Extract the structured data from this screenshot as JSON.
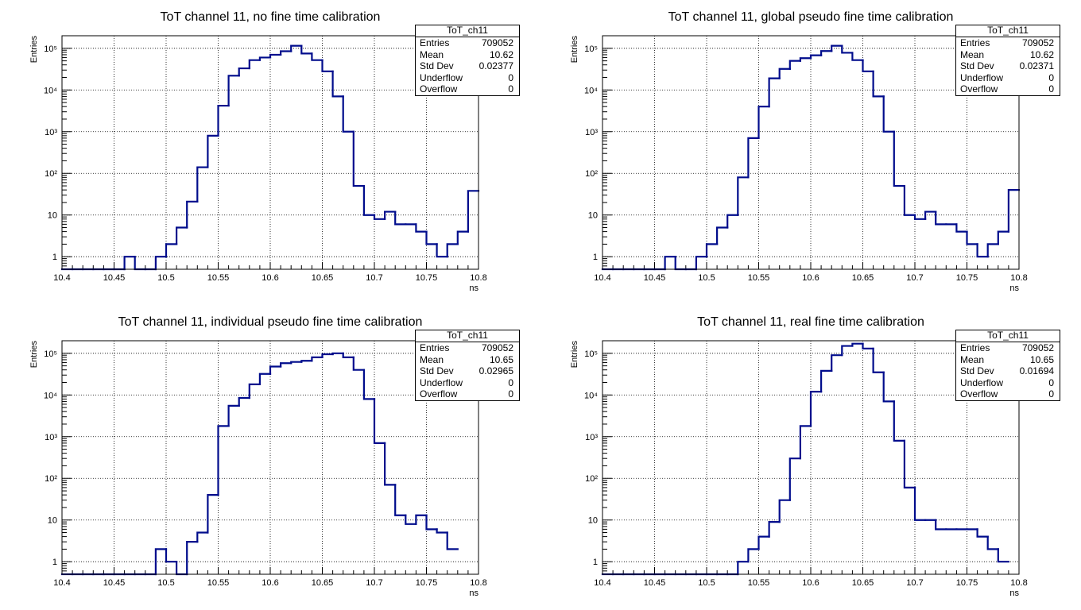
{
  "chart_data": [
    {
      "type": "bar",
      "title": "ToT channel 11, no fine time calibration",
      "xlabel": "ns",
      "ylabel": "Entries",
      "xlim": [
        10.4,
        10.8
      ],
      "ylim": [
        0.5,
        200000
      ],
      "log_y": true,
      "grid": true,
      "bin_edges_start": 10.4,
      "bin_width": 0.01,
      "values": [
        0.5,
        0.5,
        0.5,
        0.5,
        0.5,
        0.5,
        1,
        0.5,
        0.5,
        1,
        2,
        5,
        21,
        140,
        800,
        4200,
        22000,
        33000,
        52000,
        60000,
        70000,
        85000,
        115000,
        75000,
        52000,
        28000,
        7000,
        1000,
        50,
        10,
        8,
        12,
        6,
        6,
        4,
        2,
        1,
        2,
        4,
        38
      ],
      "x_ticks": [
        "10.4",
        "10.45",
        "10.5",
        "10.55",
        "10.6",
        "10.65",
        "10.7",
        "10.75",
        "10.8"
      ],
      "y_ticks": [
        "1",
        "10",
        "10²",
        "10³",
        "10⁴",
        "10⁵"
      ],
      "stats": {
        "name": "ToT_ch11",
        "entries": "709052",
        "mean": "10.62",
        "std_dev": "0.02377",
        "underflow": "0",
        "overflow": "0"
      }
    },
    {
      "type": "bar",
      "title": "ToT channel 11, global pseudo fine time calibration",
      "xlabel": "ns",
      "ylabel": "Entries",
      "xlim": [
        10.4,
        10.8
      ],
      "ylim": [
        0.5,
        200000
      ],
      "log_y": true,
      "grid": true,
      "bin_edges_start": 10.4,
      "bin_width": 0.01,
      "values": [
        0.5,
        0.5,
        0.5,
        0.5,
        0.5,
        0.5,
        1,
        0.5,
        0.5,
        1,
        2,
        5,
        10,
        80,
        700,
        4000,
        19000,
        32000,
        50000,
        58000,
        68000,
        86000,
        115000,
        78000,
        52000,
        28000,
        7000,
        1000,
        50,
        10,
        8,
        12,
        6,
        6,
        4,
        2,
        1,
        2,
        4,
        40
      ],
      "x_ticks": [
        "10.4",
        "10.45",
        "10.5",
        "10.55",
        "10.6",
        "10.65",
        "10.7",
        "10.75",
        "10.8"
      ],
      "y_ticks": [
        "1",
        "10",
        "10²",
        "10³",
        "10⁴",
        "10⁵"
      ],
      "stats": {
        "name": "ToT_ch11",
        "entries": "709052",
        "mean": "10.62",
        "std_dev": "0.02371",
        "underflow": "0",
        "overflow": "0"
      }
    },
    {
      "type": "bar",
      "title": "ToT channel 11, individual pseudo fine time calibration",
      "xlabel": "ns",
      "ylabel": "Entries",
      "xlim": [
        10.4,
        10.8
      ],
      "ylim": [
        0.5,
        200000
      ],
      "log_y": true,
      "grid": true,
      "bin_edges_start": 10.4,
      "bin_width": 0.01,
      "values": [
        0.5,
        0.5,
        0.5,
        0.5,
        0.5,
        0.5,
        0.5,
        0.5,
        0.5,
        2,
        1,
        0.5,
        3,
        5,
        40,
        1800,
        5500,
        8500,
        18000,
        32000,
        48000,
        58000,
        62000,
        66000,
        80000,
        95000,
        100000,
        80000,
        40000,
        8000,
        700,
        70,
        13,
        8,
        13,
        6,
        5,
        2
      ],
      "x_ticks": [
        "10.4",
        "10.45",
        "10.5",
        "10.55",
        "10.6",
        "10.65",
        "10.7",
        "10.75",
        "10.8"
      ],
      "y_ticks": [
        "1",
        "10",
        "10²",
        "10³",
        "10⁴",
        "10⁵"
      ],
      "stats": {
        "name": "ToT_ch11",
        "entries": "709052",
        "mean": "10.65",
        "std_dev": "0.02965",
        "underflow": "0",
        "overflow": "0"
      }
    },
    {
      "type": "bar",
      "title": "ToT channel 11, real fine time calibration",
      "xlabel": "ns",
      "ylabel": "Entries",
      "xlim": [
        10.4,
        10.8
      ],
      "ylim": [
        0.5,
        200000
      ],
      "log_y": true,
      "grid": true,
      "bin_edges_start": 10.4,
      "bin_width": 0.01,
      "values": [
        0.5,
        0.5,
        0.5,
        0.5,
        0.5,
        0.5,
        0.5,
        0.5,
        0.5,
        0.5,
        0.5,
        0.5,
        0.5,
        1,
        2,
        4,
        9,
        30,
        300,
        1800,
        12000,
        38000,
        90000,
        150000,
        170000,
        130000,
        35000,
        7000,
        800,
        60,
        10,
        10,
        6,
        6,
        6,
        6,
        4,
        2,
        1
      ],
      "x_ticks": [
        "10.4",
        "10.45",
        "10.5",
        "10.55",
        "10.6",
        "10.65",
        "10.7",
        "10.75",
        "10.8"
      ],
      "y_ticks": [
        "1",
        "10",
        "10²",
        "10³",
        "10⁴",
        "10⁵"
      ],
      "stats": {
        "name": "ToT_ch11",
        "entries": "709052",
        "mean": "10.65",
        "std_dev": "0.01694",
        "underflow": "0",
        "overflow": "0"
      }
    }
  ],
  "stats_labels": {
    "entries": "Entries",
    "mean": "Mean",
    "std_dev": "Std Dev",
    "underflow": "Underflow",
    "overflow": "Overflow"
  },
  "colors": {
    "histogram": "#000c8c",
    "grid": "#000000"
  }
}
